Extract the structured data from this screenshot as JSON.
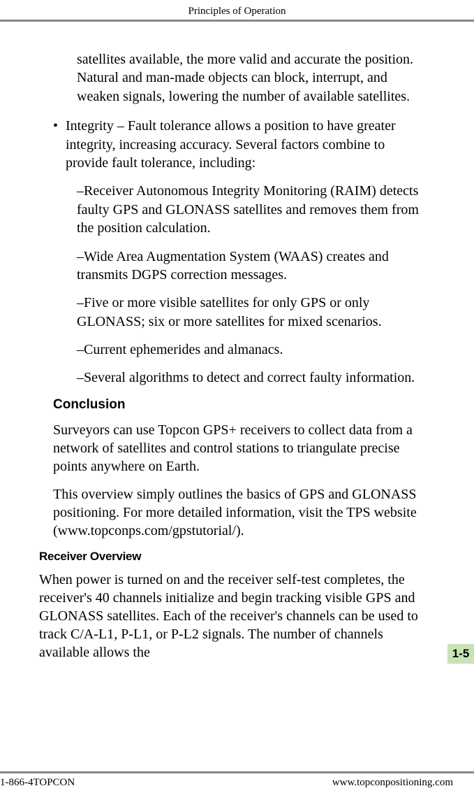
{
  "header": {
    "title": "Principles of Operation"
  },
  "body": {
    "continued_para": "satellites available, the more valid and accurate the position. Natural and man-made objects can block, interrupt, and weaken signals, lowering the number of available satellites.",
    "bullet_mark": "•",
    "integrity_bullet": "Integrity – Fault tolerance allows a position to have greater integrity, increasing accuracy. Several factors combine to provide fault tolerance, including:",
    "sub1": "–Receiver Autonomous Integrity Monitoring (RAIM) detects faulty GPS and GLONASS satellites and removes them from the position calculation.",
    "sub2": "–Wide Area Augmentation System (WAAS) creates and transmits DGPS correction messages.",
    "sub3": "–Five or more visible satellites for only GPS or only GLONASS; six or more satellites for mixed scenarios.",
    "sub4": "–Current ephemerides and almanacs.",
    "sub5": "–Several algorithms to detect and correct faulty information.",
    "conclusion_heading": "Conclusion",
    "conclusion_p1": "Surveyors can use Topcon GPS+ receivers to collect data from a network of satellites and control stations to triangulate precise points anywhere on Earth.",
    "conclusion_p2": "This overview simply outlines the basics of GPS and GLONASS positioning. For more detailed information, visit the TPS website (www.topconps.com/gpstutorial/).",
    "receiver_heading": "Receiver Overview",
    "receiver_p1": "When power is turned on and the receiver self-test completes, the receiver's 40 channels initialize and begin tracking visible GPS and GLONASS satellites. Each of the receiver's channels can be used to track C/A-L1, P-L1, or P-L2 signals. The number of channels available allows the"
  },
  "page_number": "1-5",
  "footer": {
    "left": "1-866-4TOPCON",
    "right": "www.topconpositioning.com"
  },
  "colors": {
    "tab_bg": "#c9e2b6",
    "rule": "#888888",
    "text": "#000000",
    "bg": "#ffffff"
  }
}
